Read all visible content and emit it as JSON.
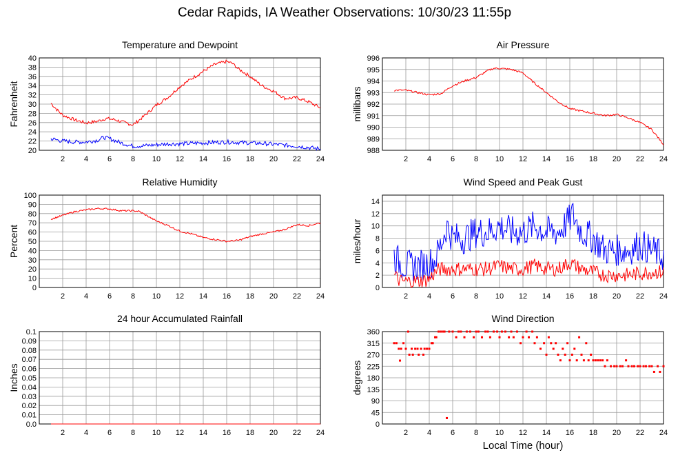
{
  "page_title": "Cedar Rapids, IA Weather Observations: 10/30/23 11:55p",
  "colors": {
    "grid": "#9a9a9a",
    "series_red": "#ff0000",
    "series_blue": "#0000ff",
    "frame": "#000000"
  },
  "chart_data": [
    {
      "id": "temp",
      "type": "line",
      "title": "Temperature and Dewpoint",
      "xlabel": "",
      "ylabel": "Fahrenheit",
      "xlim": [
        0,
        24
      ],
      "ylim": [
        20,
        40
      ],
      "xticks": [
        2,
        4,
        6,
        8,
        10,
        12,
        14,
        16,
        18,
        20,
        22,
        24
      ],
      "yticks": [
        20,
        22,
        24,
        26,
        28,
        30,
        32,
        34,
        36,
        38,
        40
      ],
      "grid": true,
      "series": [
        {
          "color": "#ff0000",
          "style": "line",
          "noise": 0.35,
          "x": [
            1,
            1.5,
            2,
            3,
            4,
            5,
            5.7,
            6.5,
            7,
            8,
            9,
            10,
            11,
            12,
            13,
            14,
            15,
            15.5,
            16,
            16.5,
            17,
            18,
            19,
            20,
            21,
            22,
            23,
            24
          ],
          "y": [
            30.2,
            28.8,
            27.6,
            26.6,
            25.9,
            26.3,
            26.9,
            26.6,
            26.2,
            25.5,
            27.5,
            29.8,
            31.5,
            33.8,
            35.5,
            37.1,
            38.6,
            38.9,
            39.2,
            38.8,
            37.6,
            36,
            34,
            32.8,
            31.2,
            31.4,
            30.5,
            29.2
          ]
        },
        {
          "color": "#0000ff",
          "style": "line",
          "noise": 0.45,
          "x": [
            1,
            2,
            3,
            4,
            5,
            5.5,
            6,
            7,
            8,
            9,
            10,
            11,
            12,
            13,
            14,
            15,
            16,
            17,
            18,
            19,
            20,
            21,
            22,
            23,
            24
          ],
          "y": [
            22.5,
            22,
            21.8,
            21.8,
            22.2,
            22.8,
            22.5,
            21.6,
            20.9,
            21,
            21.2,
            21.4,
            21.4,
            21.5,
            21.6,
            21.7,
            21.8,
            21.7,
            21.6,
            21.5,
            21.3,
            21.1,
            20.9,
            20.6,
            20.3
          ]
        }
      ]
    },
    {
      "id": "pressure",
      "type": "line",
      "title": "Air Pressure",
      "xlabel": "",
      "ylabel": "millibars",
      "xlim": [
        0,
        24
      ],
      "ylim": [
        988,
        996
      ],
      "xticks": [
        2,
        4,
        6,
        8,
        10,
        12,
        14,
        16,
        18,
        20,
        22,
        24
      ],
      "yticks": [
        988,
        989,
        990,
        991,
        992,
        993,
        994,
        995,
        996
      ],
      "grid": true,
      "series": [
        {
          "color": "#ff0000",
          "style": "line",
          "noise": 0.08,
          "x": [
            1,
            2,
            3,
            4,
            5,
            6,
            7,
            8,
            9,
            9.5,
            10,
            11,
            12,
            13,
            14,
            15,
            16,
            17,
            18,
            19,
            20,
            21,
            22,
            23,
            24
          ],
          "y": [
            993.2,
            993.2,
            993,
            992.8,
            992.9,
            993.6,
            994,
            994.3,
            994.9,
            995.1,
            995.1,
            995,
            994.7,
            993.8,
            993,
            992.2,
            991.6,
            991.4,
            991.2,
            991,
            991.1,
            990.8,
            990.4,
            989.8,
            988.5
          ]
        }
      ]
    },
    {
      "id": "rh",
      "type": "line",
      "title": "Relative Humidity",
      "xlabel": "",
      "ylabel": "Percent",
      "xlim": [
        0,
        24
      ],
      "ylim": [
        0,
        100
      ],
      "xticks": [
        2,
        4,
        6,
        8,
        10,
        12,
        14,
        16,
        18,
        20,
        22,
        24
      ],
      "yticks": [
        0,
        10,
        20,
        30,
        40,
        50,
        60,
        70,
        80,
        90,
        100
      ],
      "grid": true,
      "series": [
        {
          "color": "#ff0000",
          "style": "line",
          "noise": 0.9,
          "x": [
            1,
            2,
            3,
            4,
            5,
            6,
            7,
            8,
            8.5,
            9,
            10,
            11,
            12,
            13,
            14,
            15,
            16,
            17,
            18,
            19,
            20,
            21,
            22,
            23,
            24
          ],
          "y": [
            74,
            78,
            82,
            84,
            85.5,
            85,
            83,
            83,
            82.5,
            79,
            72,
            67,
            61,
            58,
            54,
            52,
            50,
            51,
            55,
            58,
            60,
            63,
            68,
            67,
            70
          ]
        }
      ]
    },
    {
      "id": "wind",
      "type": "line",
      "title": "Wind Speed and Peak Gust",
      "xlabel": "",
      "ylabel": "miles/hour",
      "xlim": [
        0,
        24
      ],
      "ylim": [
        0,
        15
      ],
      "xticks": [
        2,
        4,
        6,
        8,
        10,
        12,
        14,
        16,
        18,
        20,
        22,
        24
      ],
      "yticks": [
        0,
        2,
        4,
        6,
        8,
        10,
        12,
        14
      ],
      "grid": true,
      "series": [
        {
          "color": "#0000ff",
          "style": "line",
          "noise": 2.6,
          "x": [
            1,
            1.5,
            2,
            3,
            4,
            4.5,
            5,
            5.5,
            6,
            7,
            8,
            9,
            10,
            11,
            12,
            13,
            14,
            15,
            16,
            16.2,
            17,
            18,
            19,
            20,
            21,
            22,
            23,
            24
          ],
          "y": [
            5,
            4,
            3.5,
            3.5,
            4,
            4.5,
            7,
            10,
            8,
            8,
            9,
            9,
            10,
            9,
            9,
            10,
            9,
            9,
            11,
            12,
            9,
            8,
            6,
            6,
            6,
            7,
            6,
            5
          ]
        },
        {
          "color": "#ff0000",
          "style": "line",
          "noise": 1.2,
          "x": [
            1,
            1.5,
            2,
            3,
            4,
            4.5,
            5,
            6,
            7,
            8,
            9,
            10,
            11,
            12,
            13,
            14,
            15,
            16,
            17,
            18,
            19,
            20,
            21,
            22,
            23,
            24
          ],
          "y": [
            2,
            1,
            1,
            1,
            1.3,
            2.5,
            3,
            3,
            3,
            3,
            3,
            3.5,
            3,
            3,
            3.5,
            3,
            3,
            4,
            3,
            2.5,
            2,
            2,
            2,
            2.3,
            2.5,
            2.5
          ]
        }
      ]
    },
    {
      "id": "rain",
      "type": "line",
      "title": "24 hour Accumulated Rainfall",
      "xlabel": "",
      "ylabel": "Inches",
      "xlim": [
        0,
        24
      ],
      "ylim": [
        0,
        0.1
      ],
      "xticks": [
        2,
        4,
        6,
        8,
        10,
        12,
        14,
        16,
        18,
        20,
        22,
        24
      ],
      "yticks": [
        0,
        0.01,
        0.02,
        0.03,
        0.04,
        0.05,
        0.06,
        0.07,
        0.08,
        0.09,
        0.1
      ],
      "ytick_labels": [
        "0.0",
        "0.01",
        "0.02",
        "0.03",
        "0.04",
        "0.05",
        "0.06",
        "0.07",
        "0.08",
        "0.09",
        "0.1"
      ],
      "grid": true,
      "series": [
        {
          "color": "#ff0000",
          "style": "line",
          "noise": 0,
          "x": [
            1,
            24
          ],
          "y": [
            0,
            0
          ]
        }
      ]
    },
    {
      "id": "winddir",
      "type": "scatter",
      "title": "Wind Direction",
      "xlabel": "Local Time (hour)",
      "ylabel": "degrees",
      "xlim": [
        0,
        24
      ],
      "ylim": [
        0,
        360
      ],
      "xticks": [
        2,
        4,
        6,
        8,
        10,
        12,
        14,
        16,
        18,
        20,
        22,
        24
      ],
      "yticks": [
        0,
        45,
        90,
        135,
        180,
        225,
        270,
        315,
        360
      ],
      "grid": true,
      "series": [
        {
          "color": "#ff0000",
          "style": "scatter",
          "x": [
            1,
            1.2,
            1.4,
            1.5,
            1.6,
            1.8,
            2,
            2.2,
            2.3,
            2.5,
            2.6,
            2.8,
            3,
            3.1,
            3.3,
            3.5,
            3.6,
            3.8,
            4,
            4.2,
            4.3,
            4.5,
            4.6,
            4.8,
            5,
            5.2,
            5.3,
            5.5,
            5.7,
            6,
            6.3,
            6.5,
            6.7,
            7,
            7.2,
            7.5,
            7.8,
            8,
            8.2,
            8.5,
            8.8,
            9,
            9.2,
            9.5,
            9.8,
            10,
            10.2,
            10.5,
            10.8,
            11,
            11.2,
            11.5,
            11.8,
            12,
            12.3,
            12.5,
            12.8,
            13,
            13.2,
            13.5,
            13.8,
            14,
            14.2,
            14.4,
            14.6,
            14.8,
            15,
            15.2,
            15.4,
            15.6,
            15.8,
            16,
            16.2,
            16.4,
            16.6,
            16.8,
            17,
            17.2,
            17.4,
            17.6,
            17.8,
            18,
            18.2,
            18.4,
            18.6,
            18.8,
            19,
            19.2,
            19.5,
            19.8,
            20,
            20.3,
            20.5,
            20.8,
            21,
            21.3,
            21.5,
            21.8,
            22,
            22.3,
            22.5,
            22.8,
            23,
            23.2,
            23.5,
            23.7,
            24
          ],
          "y": [
            315,
            315,
            293,
            247,
            293,
            315,
            293,
            360,
            270,
            293,
            270,
            293,
            293,
            270,
            293,
            270,
            293,
            293,
            293,
            315,
            315,
            338,
            338,
            360,
            360,
            360,
            360,
            23,
            360,
            360,
            338,
            360,
            360,
            338,
            360,
            360,
            338,
            360,
            360,
            338,
            360,
            360,
            338,
            360,
            360,
            338,
            360,
            360,
            338,
            360,
            338,
            360,
            315,
            338,
            360,
            338,
            360,
            315,
            338,
            293,
            315,
            270,
            338,
            315,
            293,
            315,
            270,
            248,
            293,
            270,
            315,
            248,
            270,
            293,
            248,
            338,
            270,
            248,
            315,
            248,
            270,
            248,
            248,
            248,
            248,
            248,
            225,
            248,
            225,
            225,
            225,
            225,
            225,
            248,
            225,
            225,
            225,
            225,
            225,
            225,
            225,
            225,
            225,
            203,
            225,
            203,
            225
          ]
        }
      ]
    }
  ]
}
